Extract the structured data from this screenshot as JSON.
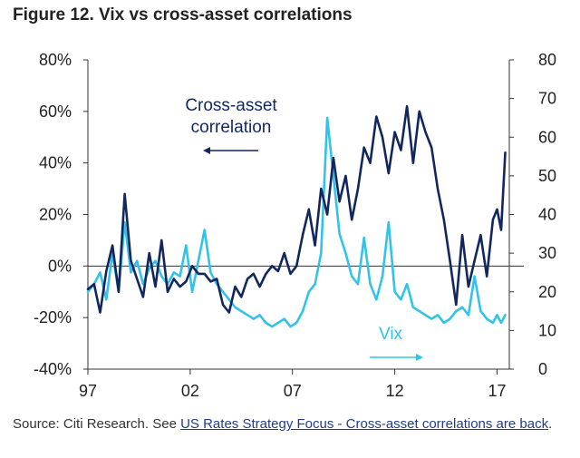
{
  "figure": {
    "title": "Figure 12. Vix vs cross-asset correlations",
    "source_prefix": "Source: Citi Research. See ",
    "source_link": "US Rates Strategy Focus - Cross-asset correlations are back",
    "source_suffix": "."
  },
  "chart_data": {
    "type": "line",
    "title": "Figure 12. Vix vs cross-asset correlations",
    "x_ticks": [
      "97",
      "02",
      "07",
      "12",
      "17"
    ],
    "x_tick_years": [
      1997,
      2002,
      2007,
      2012,
      2017
    ],
    "xlim": [
      1997,
      2017.6
    ],
    "y_left": {
      "ylim": [
        -40,
        80
      ],
      "ticks": [
        -40,
        -20,
        0,
        20,
        40,
        60,
        80
      ],
      "tick_labels": [
        "-40%",
        "-20%",
        "0%",
        "20%",
        "40%",
        "60%",
        "80%"
      ]
    },
    "y_right": {
      "ylim": [
        0,
        80
      ],
      "ticks": [
        0,
        10,
        20,
        30,
        40,
        50,
        60,
        70,
        80
      ],
      "tick_labels": [
        "0",
        "10",
        "20",
        "30",
        "40",
        "50",
        "60",
        "70",
        "80"
      ]
    },
    "colors": {
      "correlation": "#12275e",
      "vix": "#33c3ea",
      "axis": "#333333"
    },
    "annotations": {
      "correlation_label_line1": "Cross-asset",
      "correlation_label_line2": "correlation",
      "vix_label": "Vix"
    },
    "series": [
      {
        "name": "Cross-asset correlation",
        "axis": "left",
        "x": [
          1997.0,
          1997.3,
          1997.6,
          1997.9,
          1998.2,
          1998.5,
          1998.8,
          1999.1,
          1999.4,
          1999.7,
          2000.0,
          2000.3,
          2000.6,
          2000.9,
          2001.2,
          2001.5,
          2001.8,
          2002.1,
          2002.4,
          2002.7,
          2003.0,
          2003.3,
          2003.6,
          2003.9,
          2004.2,
          2004.5,
          2004.8,
          2005.1,
          2005.4,
          2005.7,
          2006.0,
          2006.3,
          2006.6,
          2006.9,
          2007.2,
          2007.5,
          2007.8,
          2008.1,
          2008.4,
          2008.7,
          2009.0,
          2009.3,
          2009.6,
          2009.9,
          2010.2,
          2010.5,
          2010.8,
          2011.1,
          2011.4,
          2011.7,
          2012.0,
          2012.3,
          2012.6,
          2012.9,
          2013.2,
          2013.5,
          2013.8,
          2014.1,
          2014.4,
          2014.7,
          2015.0,
          2015.3,
          2015.6,
          2015.9,
          2016.2,
          2016.5,
          2016.8,
          2017.0,
          2017.2,
          2017.4
        ],
        "values": [
          -9,
          -7,
          -18,
          -2,
          8,
          -10,
          28,
          2,
          -5,
          -12,
          5,
          -8,
          10,
          -10,
          -5,
          -8,
          -6,
          0,
          -3,
          -3,
          -6,
          -5,
          -15,
          -18,
          -8,
          -12,
          -5,
          -3,
          -8,
          -3,
          0,
          -2,
          5,
          -3,
          0,
          12,
          22,
          8,
          30,
          20,
          42,
          25,
          35,
          18,
          30,
          46,
          40,
          58,
          50,
          36,
          52,
          45,
          62,
          40,
          60,
          52,
          46,
          30,
          18,
          2,
          -15,
          12,
          -8,
          2,
          12,
          -4,
          18,
          22,
          14,
          44
        ]
      },
      {
        "name": "Vix",
        "axis": "right",
        "x": [
          1997.0,
          1997.3,
          1997.6,
          1997.9,
          1998.2,
          1998.5,
          1998.8,
          1999.1,
          1999.4,
          1999.7,
          2000.0,
          2000.3,
          2000.6,
          2000.9,
          2001.2,
          2001.5,
          2001.8,
          2002.1,
          2002.4,
          2002.7,
          2003.0,
          2003.3,
          2003.6,
          2003.9,
          2004.2,
          2004.5,
          2004.8,
          2005.1,
          2005.4,
          2005.7,
          2006.0,
          2006.3,
          2006.6,
          2006.9,
          2007.2,
          2007.5,
          2007.8,
          2008.1,
          2008.4,
          2008.7,
          2009.0,
          2009.3,
          2009.6,
          2009.9,
          2010.2,
          2010.5,
          2010.8,
          2011.1,
          2011.4,
          2011.7,
          2012.0,
          2012.3,
          2012.6,
          2012.9,
          2013.2,
          2013.5,
          2013.8,
          2014.1,
          2014.4,
          2014.7,
          2015.0,
          2015.3,
          2015.6,
          2015.9,
          2016.2,
          2016.5,
          2016.8,
          2017.0,
          2017.2,
          2017.4
        ],
        "values": [
          20,
          22,
          25,
          18,
          30,
          20,
          38,
          25,
          28,
          22,
          26,
          28,
          24,
          22,
          25,
          24,
          32,
          20,
          28,
          36,
          25,
          22,
          20,
          18,
          16,
          15,
          14,
          13,
          14,
          12,
          11,
          12,
          13,
          11,
          12,
          15,
          20,
          22,
          30,
          65,
          50,
          35,
          30,
          24,
          22,
          34,
          22,
          18,
          24,
          38,
          20,
          18,
          22,
          16,
          15,
          14,
          13,
          14,
          12,
          13,
          15,
          16,
          14,
          24,
          15,
          13,
          12,
          14,
          12,
          14
        ]
      }
    ]
  }
}
